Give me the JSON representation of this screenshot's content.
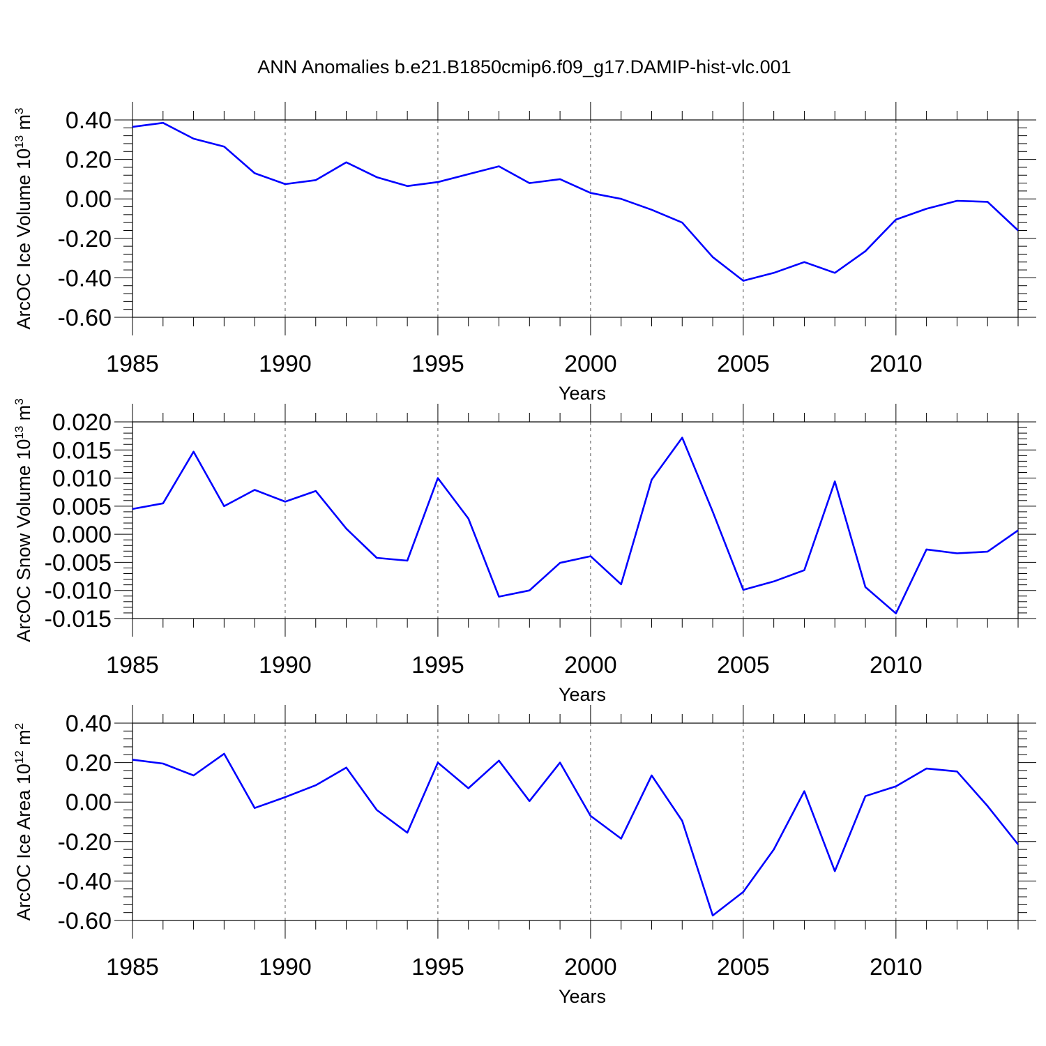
{
  "title": "ANN Anomalies b.e21.B1850cmip6.f09_g17.DAMIP-hist-vlc.001",
  "line_color": "#0000ff",
  "chart_data": [
    {
      "type": "line",
      "title": "",
      "xlabel": "Years",
      "ylabel": "ArcOC Ice Volume 10",
      "ylabel_exp": "13",
      "ylabel_unit": " m",
      "ylabel_unit_exp": "3",
      "xlim": [
        1985,
        2014
      ],
      "ylim": [
        -0.6,
        0.4
      ],
      "yticks": [
        "0.40",
        "0.20",
        "0.00",
        "-0.20",
        "-0.40",
        "-0.60"
      ],
      "ytick_values": [
        0.4,
        0.2,
        0.0,
        -0.2,
        -0.4,
        -0.6
      ],
      "xticks": [
        "1985",
        "1990",
        "1995",
        "2000",
        "2005",
        "2010"
      ],
      "xtick_values": [
        1985,
        1990,
        1995,
        2000,
        2005,
        2010
      ],
      "x": [
        1985,
        1986,
        1987,
        1988,
        1989,
        1990,
        1991,
        1992,
        1993,
        1994,
        1995,
        1996,
        1997,
        1998,
        1999,
        2000,
        2001,
        2002,
        2003,
        2004,
        2005,
        2006,
        2007,
        2008,
        2009,
        2010,
        2011,
        2012,
        2013,
        2014
      ],
      "series": [
        {
          "name": "ArcOC Ice Volume",
          "values": [
            0.365,
            0.385,
            0.305,
            0.265,
            0.13,
            0.075,
            0.095,
            0.185,
            0.11,
            0.065,
            0.085,
            0.125,
            0.165,
            0.08,
            0.1,
            0.03,
            0.0,
            -0.055,
            -0.12,
            -0.295,
            -0.415,
            -0.375,
            -0.32,
            -0.375,
            -0.265,
            -0.105,
            -0.05,
            -0.01,
            -0.015,
            -0.16
          ]
        }
      ]
    },
    {
      "type": "line",
      "title": "",
      "xlabel": "Years",
      "ylabel": "ArcOC Snow Volume 10",
      "ylabel_exp": "13",
      "ylabel_unit": " m",
      "ylabel_unit_exp": "3",
      "xlim": [
        1985,
        2014
      ],
      "ylim": [
        -0.015,
        0.02
      ],
      "yticks": [
        "0.020",
        "0.015",
        "0.010",
        "0.005",
        "0.000",
        "-0.005",
        "-0.010",
        "-0.015"
      ],
      "ytick_values": [
        0.02,
        0.015,
        0.01,
        0.005,
        0.0,
        -0.005,
        -0.01,
        -0.015
      ],
      "xticks": [
        "1985",
        "1990",
        "1995",
        "2000",
        "2005",
        "2010"
      ],
      "xtick_values": [
        1985,
        1990,
        1995,
        2000,
        2005,
        2010
      ],
      "x": [
        1985,
        1986,
        1987,
        1988,
        1989,
        1990,
        1991,
        1992,
        1993,
        1994,
        1995,
        1996,
        1997,
        1998,
        1999,
        2000,
        2001,
        2002,
        2003,
        2004,
        2005,
        2006,
        2007,
        2008,
        2009,
        2010,
        2011,
        2012,
        2013,
        2014
      ],
      "series": [
        {
          "name": "ArcOC Snow Volume",
          "values": [
            0.0045,
            0.0055,
            0.0147,
            0.005,
            0.0079,
            0.0058,
            0.0077,
            0.001,
            -0.0042,
            -0.0047,
            0.01,
            0.0028,
            -0.0111,
            -0.01,
            -0.0051,
            -0.0039,
            -0.0089,
            0.0097,
            0.0172,
            0.004,
            -0.0099,
            -0.0084,
            -0.0064,
            0.0094,
            -0.0094,
            -0.0141,
            -0.0027,
            -0.0034,
            -0.0031,
            0.0007
          ]
        }
      ]
    },
    {
      "type": "line",
      "title": "",
      "xlabel": "Years",
      "ylabel": "ArcOC Ice Area 10",
      "ylabel_exp": "12",
      "ylabel_unit": " m",
      "ylabel_unit_exp": "2",
      "xlim": [
        1985,
        2014
      ],
      "ylim": [
        -0.6,
        0.4
      ],
      "yticks": [
        "0.40",
        "0.20",
        "0.00",
        "-0.20",
        "-0.40",
        "-0.60"
      ],
      "ytick_values": [
        0.4,
        0.2,
        0.0,
        -0.2,
        -0.4,
        -0.6
      ],
      "xticks": [
        "1985",
        "1990",
        "1995",
        "2000",
        "2005",
        "2010"
      ],
      "xtick_values": [
        1985,
        1990,
        1995,
        2000,
        2005,
        2010
      ],
      "x": [
        1985,
        1986,
        1987,
        1988,
        1989,
        1990,
        1991,
        1992,
        1993,
        1994,
        1995,
        1996,
        1997,
        1998,
        1999,
        2000,
        2001,
        2002,
        2003,
        2004,
        2005,
        2006,
        2007,
        2008,
        2009,
        2010,
        2011,
        2012,
        2013,
        2014
      ],
      "series": [
        {
          "name": "ArcOC Ice Area",
          "values": [
            0.215,
            0.195,
            0.135,
            0.245,
            -0.03,
            0.025,
            0.085,
            0.175,
            -0.04,
            -0.155,
            0.2,
            0.07,
            0.21,
            0.005,
            0.2,
            -0.07,
            -0.185,
            0.135,
            -0.095,
            -0.575,
            -0.455,
            -0.24,
            0.055,
            -0.35,
            0.03,
            0.08,
            0.17,
            0.155,
            -0.02,
            -0.215
          ]
        }
      ]
    }
  ]
}
